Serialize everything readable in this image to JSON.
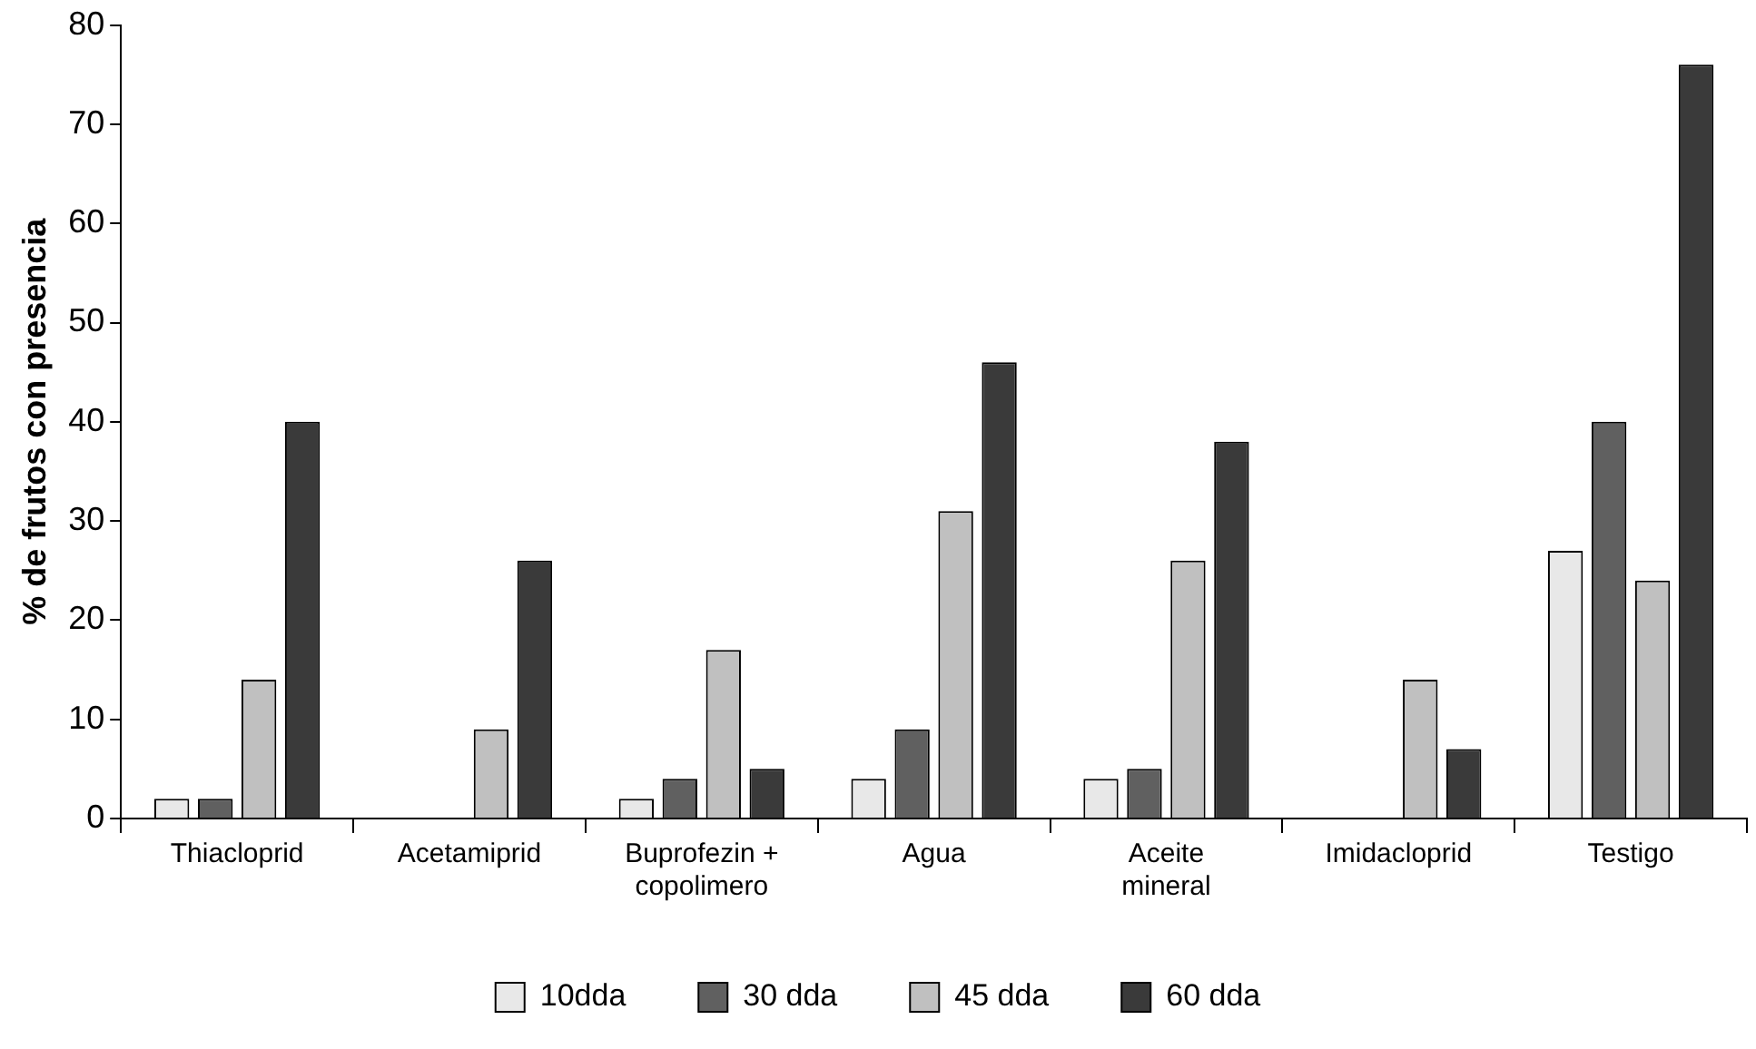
{
  "chart_data": {
    "type": "bar",
    "ylabel": "% de frutos con presencia",
    "categories": [
      "Thiacloprid",
      "Acetamiprid",
      "Buprofezin + copolimero",
      "Agua",
      "Aceite mineral",
      "Imidacloprid",
      "Testigo"
    ],
    "series": [
      {
        "name": "10dda",
        "color": "#e8e8e8",
        "values": [
          2,
          0,
          2,
          4,
          4,
          0,
          27
        ]
      },
      {
        "name": "30 dda",
        "color": "#606060",
        "values": [
          2,
          0,
          4,
          9,
          5,
          0,
          40
        ]
      },
      {
        "name": "45 dda",
        "color": "#c0c0c0",
        "values": [
          14,
          9,
          17,
          31,
          26,
          14,
          24
        ]
      },
      {
        "name": "60 dda",
        "color": "#3a3a3a",
        "values": [
          40,
          26,
          5,
          46,
          38,
          7,
          76
        ]
      }
    ],
    "ylim": [
      0,
      80
    ],
    "yticks": [
      0,
      10,
      20,
      30,
      40,
      50,
      60,
      70,
      80
    ],
    "grid": false,
    "legend": "bottom"
  }
}
